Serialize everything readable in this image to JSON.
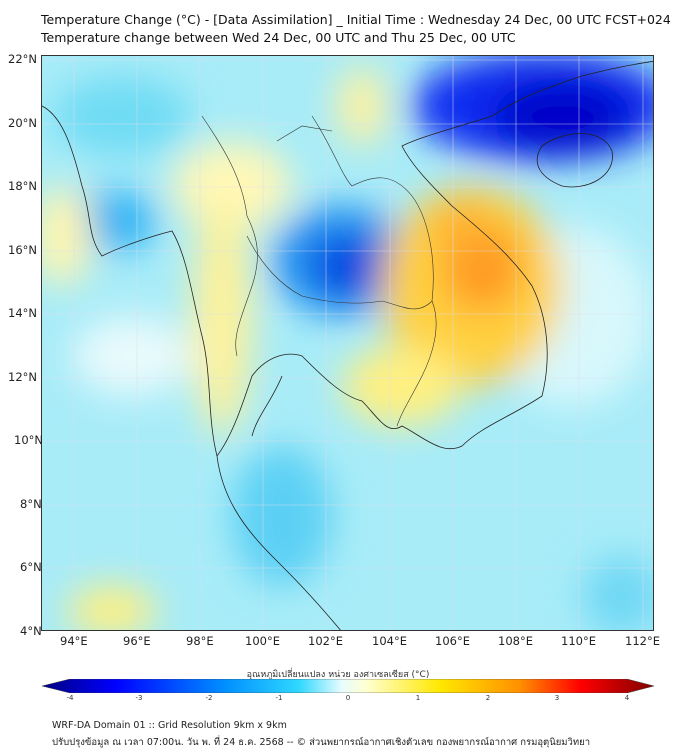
{
  "header": {
    "title": "Temperature Change (°C) - [Data Assimilation] _ Initial Time : Wednesday 24 Dec, 00 UTC FCST+024",
    "subtitle": "Temperature change between Wed 24 Dec, 00 UTC and Thu 25 Dec, 00 UTC"
  },
  "map": {
    "lat_labels": [
      "22°N",
      "20°N",
      "18°N",
      "16°N",
      "14°N",
      "12°N",
      "10°N",
      "8°N",
      "6°N",
      "4°N"
    ],
    "lon_labels": [
      "94°E",
      "96°E",
      "98°E",
      "100°E",
      "102°E",
      "104°E",
      "106°E",
      "108°E",
      "110°E",
      "112°E"
    ],
    "extent": {
      "lon_min": 93,
      "lon_max": 112.4,
      "lat_min": 4,
      "lat_max": 22.1
    }
  },
  "colorbar": {
    "title": "อุณหภูมิเปลี่ยนแปลง หน่วย องศาเซลเซียส (°C)",
    "ticks": [
      "-4",
      "-3",
      "-2",
      "-1",
      "0",
      "1",
      "2",
      "3",
      "4"
    ],
    "range": [
      -4,
      4
    ],
    "colors": [
      "#00007f",
      "#0000ff",
      "#0090ff",
      "#30d8ff",
      "#c8f8ff",
      "#ffffc8",
      "#ffe800",
      "#ff9000",
      "#ff0000",
      "#7f0000"
    ]
  },
  "footer": {
    "line1": "WRF-DA Domain 01 :: Grid Resolution 9km x 9km",
    "line2": "ปรับปรุงข้อมูล ณ เวลา 07:00น. วัน พ. ที่ 24 ธ.ค. 2568 -- © ส่วนพยากรณ์อากาศเชิงตัวเลข กองพยากรณ์อากาศ กรมอุตุนิยมวิทยา"
  }
}
